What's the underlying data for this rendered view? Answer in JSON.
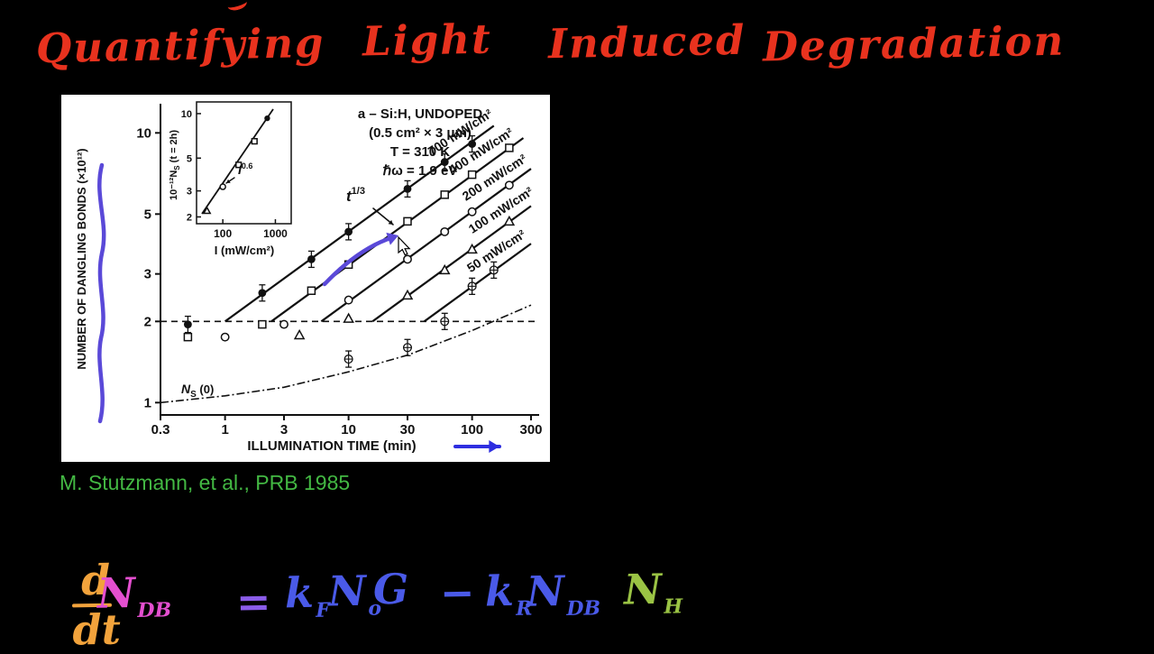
{
  "colors": {
    "title": "#e8321e",
    "citation": "#43b843",
    "pen": "#5a49d8",
    "arrow": "#2e2ee0",
    "figure_ink": "#111111"
  },
  "title": {
    "words": [
      "Quantifying",
      "Light",
      "Induced",
      "Degradation"
    ]
  },
  "citation": {
    "text": "M. Stutzmann, et al., PRB 1985"
  },
  "figure": {
    "info_lines": [
      "a – Si:H, UNDOPED",
      "(0.5 cm² × 3 μm)",
      "T = 310 K",
      "ℏω = 1.9 eV"
    ],
    "t_slope": {
      "base": "t",
      "sup": "1/3"
    },
    "ns0": {
      "base": "N",
      "sub": "S",
      "post": " (0)"
    },
    "inset_ylabel": {
      "pre": "10⁻¹²N",
      "sub": "S",
      "post": " (t = 2h)"
    },
    "inset_slope": {
      "base": "I",
      "sup": "0.6"
    }
  },
  "chart_data": [
    {
      "type": "scatter",
      "title": "",
      "xlabel": "ILLUMINATION TIME (min)",
      "ylabel": "NUMBER OF DANGLING BONDS (×10¹²)",
      "x_scale": "log",
      "y_scale": "log",
      "xlim": [
        0.3,
        300
      ],
      "ylim": [
        0.9,
        13
      ],
      "x_ticks": [
        0.3,
        1,
        3,
        10,
        30,
        100,
        300
      ],
      "y_ticks": [
        1,
        2,
        3,
        5,
        10
      ],
      "baseline": {
        "y": 2,
        "style": "dashed"
      },
      "power_law_exponent": "1/3",
      "series": [
        {
          "name": "700 mW/cm²",
          "marker": "filled-circle",
          "A": 2.0,
          "error_bars": true,
          "points": [
            [
              0.5,
              1.95
            ],
            [
              2,
              2.55
            ],
            [
              5,
              3.4
            ],
            [
              10,
              4.3
            ],
            [
              30,
              6.2
            ],
            [
              60,
              7.8
            ],
            [
              100,
              9.1
            ]
          ]
        },
        {
          "name": "400 mW/cm²",
          "marker": "open-square",
          "A": 1.5,
          "error_bars": false,
          "points": [
            [
              0.5,
              1.75
            ],
            [
              2,
              1.95
            ],
            [
              5,
              2.6
            ],
            [
              10,
              3.25
            ],
            [
              30,
              4.7
            ],
            [
              60,
              5.9
            ],
            [
              100,
              7.0
            ],
            [
              200,
              8.8
            ]
          ]
        },
        {
          "name": "200 mW/cm²",
          "marker": "open-circle",
          "A": 1.1,
          "error_bars": false,
          "points": [
            [
              1,
              1.75
            ],
            [
              3,
              1.95
            ],
            [
              10,
              2.4
            ],
            [
              30,
              3.4
            ],
            [
              60,
              4.3
            ],
            [
              100,
              5.1
            ],
            [
              200,
              6.4
            ]
          ]
        },
        {
          "name": "100 mW/cm²",
          "marker": "open-triangle",
          "A": 0.8,
          "error_bars": false,
          "points": [
            [
              4,
              1.78
            ],
            [
              10,
              2.05
            ],
            [
              30,
              2.5
            ],
            [
              60,
              3.1
            ],
            [
              100,
              3.7
            ],
            [
              200,
              4.7
            ]
          ]
        },
        {
          "name": "50 mW/cm²",
          "marker": "circle-plus",
          "A": 0.58,
          "error_bars": true,
          "points": [
            [
              10,
              1.45
            ],
            [
              30,
              1.6
            ],
            [
              60,
              2.0
            ],
            [
              100,
              2.7
            ],
            [
              150,
              3.1
            ]
          ]
        }
      ],
      "ns0_curve": {
        "label": "Ns (0)",
        "points": [
          [
            0.3,
            1.0
          ],
          [
            1,
            1.06
          ],
          [
            3,
            1.14
          ],
          [
            10,
            1.3
          ],
          [
            30,
            1.5
          ],
          [
            100,
            1.85
          ],
          [
            300,
            2.3
          ]
        ]
      }
    },
    {
      "type": "scatter",
      "title": "",
      "xlabel": "I (mW/cm²)",
      "ylabel": "10⁻¹²Ns (t = 2h)",
      "x_scale": "log",
      "y_scale": "log",
      "x_ticks": [
        100,
        1000
      ],
      "y_ticks": [
        2,
        3,
        5,
        10
      ],
      "slope_label": "I^0.6",
      "points": [
        [
          50,
          2.2
        ],
        [
          100,
          3.2
        ],
        [
          200,
          4.5
        ],
        [
          400,
          6.5
        ],
        [
          700,
          9.3
        ]
      ],
      "markers": [
        "open-triangle",
        "open-circle",
        "open-square",
        "open-square",
        "filled-circle"
      ]
    }
  ],
  "equation": {
    "fraction": {
      "numerator": "d",
      "denominator": "dt",
      "color": "#f2a33c"
    },
    "terms": [
      {
        "text": "N",
        "sub": "DB",
        "color": "#e44fd0"
      },
      {
        "text": "=",
        "sub": "",
        "color": "#8a5ce8"
      },
      {
        "text": "k",
        "sub": "F",
        "color": "#4a5ae8"
      },
      {
        "text": "N",
        "sub": "o",
        "color": "#4a5ae8"
      },
      {
        "text": "G",
        "sub": "",
        "color": "#4a5ae8"
      },
      {
        "text": "−",
        "sub": "",
        "color": "#4a5ae8"
      },
      {
        "text": "k",
        "sub": "R",
        "color": "#4a5ae8"
      },
      {
        "text": "N",
        "sub": "DB",
        "color": "#4a5ae8"
      },
      {
        "text": "N",
        "sub": "H",
        "color": "#9ac344"
      }
    ]
  },
  "annotations": {
    "pen_marks": [
      "y-axis-squiggle",
      "trend-arrow"
    ],
    "time_axis_arrow": true,
    "mouse_cursor_visible": true
  }
}
